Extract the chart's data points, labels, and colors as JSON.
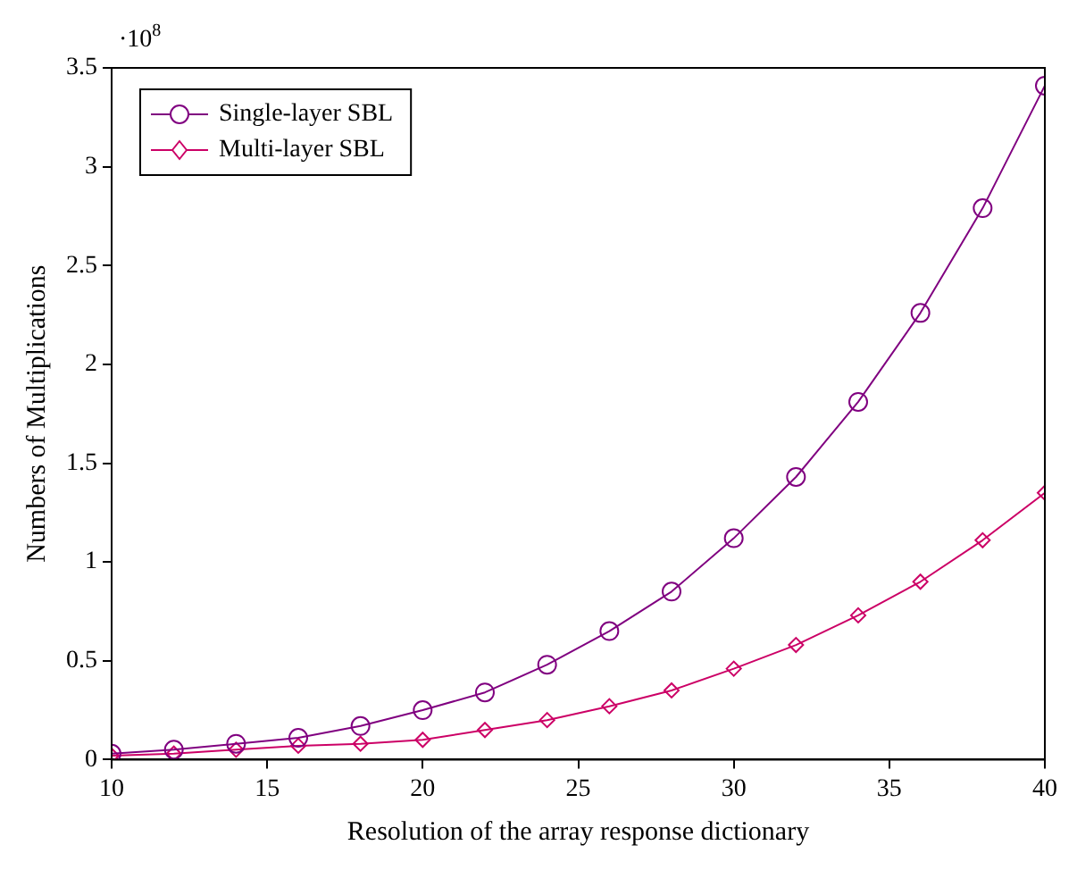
{
  "chart_data": {
    "type": "line",
    "xlabel": "Resolution of the array response dictionary",
    "ylabel": "Numbers of Multiplications",
    "annotations": [
      "·10$^{8}$"
    ],
    "x": [
      10,
      12,
      14,
      16,
      18,
      20,
      22,
      24,
      26,
      28,
      30,
      32,
      34,
      36,
      38,
      40
    ],
    "xlim": [
      10,
      40
    ],
    "xticks": [
      10,
      15,
      20,
      25,
      30,
      35,
      40
    ],
    "ylim": [
      0,
      3.5
    ],
    "yticks": [
      0,
      0.5,
      1,
      1.5,
      2,
      2.5,
      3,
      3.5
    ],
    "grid": false,
    "legend": "top left",
    "series": [
      {
        "name": "Single-layer SBL",
        "color": "#800080",
        "marker": "circle",
        "values": [
          0.03,
          0.05,
          0.08,
          0.11,
          0.17,
          0.25,
          0.34,
          0.48,
          0.65,
          0.85,
          1.12,
          1.43,
          1.81,
          2.26,
          2.79,
          3.41
        ]
      },
      {
        "name": "Multi-layer SBL",
        "color": "#cc0066",
        "marker": "diamond",
        "values": [
          0.02,
          0.03,
          0.05,
          0.07,
          0.08,
          0.1,
          0.15,
          0.2,
          0.27,
          0.35,
          0.46,
          0.58,
          0.73,
          0.9,
          1.11,
          1.35
        ]
      }
    ]
  }
}
